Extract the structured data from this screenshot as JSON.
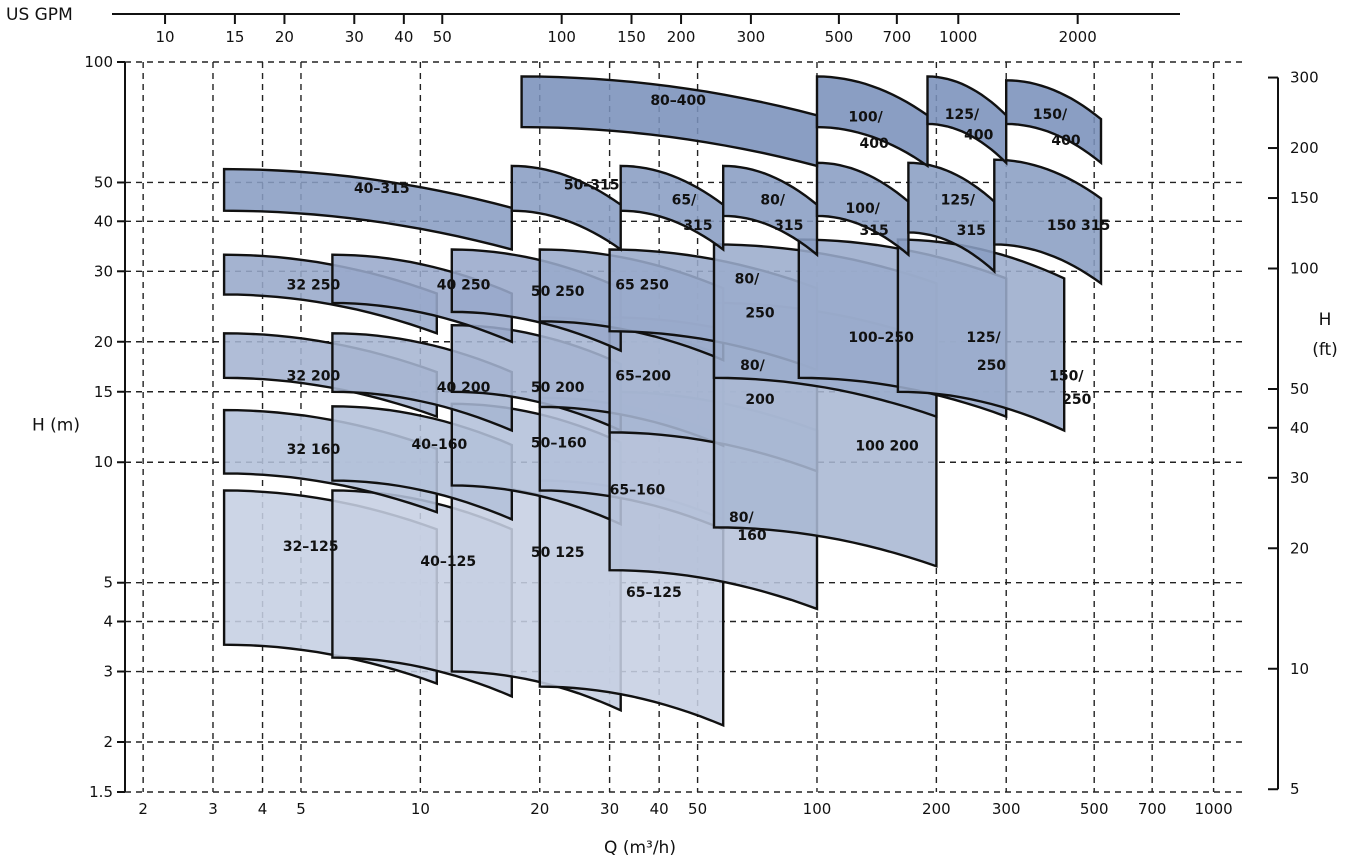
{
  "chart_data": {
    "type": "area",
    "title": "",
    "xlabel": "Q (m³/h)",
    "ylabel": "H (m)",
    "x_scale": "log",
    "y_scale": "log",
    "xlim": [
      1.8,
      1200
    ],
    "ylim": [
      1.5,
      100
    ],
    "grid": true,
    "x_ticks": [
      2,
      3,
      4,
      5,
      10,
      20,
      30,
      40,
      50,
      100,
      200,
      300,
      500,
      700,
      1000
    ],
    "x_tick_labels": [
      "2",
      "3",
      "4",
      "5",
      "10",
      "20",
      "30",
      "40",
      "50",
      "100",
      "200",
      "300",
      "500",
      "700",
      "1000"
    ],
    "y_ticks": [
      1.5,
      2,
      3,
      4,
      5,
      10,
      15,
      20,
      30,
      40,
      50,
      100
    ],
    "y_tick_labels": [
      "1.5",
      "2",
      "3",
      "4",
      "5",
      "10",
      "15",
      "20",
      "30",
      "40",
      "50",
      "100"
    ],
    "top_axis": {
      "label": "US GPM",
      "ticks": [
        10,
        15,
        20,
        30,
        40,
        50,
        100,
        150,
        200,
        300,
        500,
        700,
        1000,
        2000
      ],
      "tick_labels": [
        "10",
        "15",
        "20",
        "30",
        "40",
        "50",
        "100",
        "150",
        "200",
        "300",
        "500",
        "700",
        "1000",
        "2000"
      ]
    },
    "right_axis": {
      "label": "H",
      "unit": "(ft)",
      "ticks": [
        5,
        10,
        20,
        30,
        40,
        50,
        100,
        150,
        200,
        300
      ],
      "tick_labels": [
        "5",
        "10",
        "20",
        "30",
        "40",
        "50",
        "100",
        "150",
        "200",
        "300"
      ]
    },
    "series": [
      {
        "name": "32-125",
        "h_max": 8.5,
        "h_min": 2.8,
        "q_range": [
          3.2,
          11
        ]
      },
      {
        "name": "40-125",
        "h_max": 8.5,
        "h_min": 2.6,
        "q_range": [
          6,
          17
        ]
      },
      {
        "name": "50-125",
        "h_max": 8.8,
        "h_min": 2.4,
        "q_range": [
          12,
          32
        ]
      },
      {
        "name": "65-125",
        "h_max": 9.0,
        "h_min": 2.2,
        "q_range": [
          20,
          58
        ]
      },
      {
        "name": "32-160",
        "h_max": 13.5,
        "h_min": 7.5,
        "q_range": [
          3.2,
          11
        ]
      },
      {
        "name": "40-160",
        "h_max": 13.8,
        "h_min": 7.2,
        "q_range": [
          6,
          17
        ]
      },
      {
        "name": "50-160",
        "h_max": 14.0,
        "h_min": 7.0,
        "q_range": [
          12,
          32
        ]
      },
      {
        "name": "65-160",
        "h_max": 14.5,
        "h_min": 6.8,
        "q_range": [
          20,
          58
        ]
      },
      {
        "name": "80-160",
        "h_max": 15.0,
        "h_min": 4.3,
        "q_range": [
          30,
          100
        ]
      },
      {
        "name": "32-200",
        "h_max": 21,
        "h_min": 13,
        "q_range": [
          3.2,
          11
        ]
      },
      {
        "name": "40-200",
        "h_max": 21,
        "h_min": 12,
        "q_range": [
          6,
          17
        ]
      },
      {
        "name": "50-200",
        "h_max": 22,
        "h_min": 12,
        "q_range": [
          12,
          32
        ]
      },
      {
        "name": "65-200",
        "h_max": 23,
        "h_min": 11,
        "q_range": [
          20,
          58
        ]
      },
      {
        "name": "80-200",
        "h_max": 23,
        "h_min": 9.5,
        "q_range": [
          30,
          100
        ]
      },
      {
        "name": "100-200",
        "h_max": 25,
        "h_min": 5.5,
        "q_range": [
          55,
          200
        ]
      },
      {
        "name": "32-250",
        "h_max": 33,
        "h_min": 21,
        "q_range": [
          3.2,
          11
        ]
      },
      {
        "name": "40-250",
        "h_max": 33,
        "h_min": 20,
        "q_range": [
          6,
          17
        ]
      },
      {
        "name": "50-250",
        "h_max": 34,
        "h_min": 19,
        "q_range": [
          12,
          32
        ]
      },
      {
        "name": "65-250",
        "h_max": 34,
        "h_min": 18,
        "q_range": [
          20,
          58
        ]
      },
      {
        "name": "80-250",
        "h_max": 34,
        "h_min": 17,
        "q_range": [
          30,
          100
        ]
      },
      {
        "name": "100-250",
        "h_max": 35,
        "h_min": 13,
        "q_range": [
          55,
          200
        ]
      },
      {
        "name": "125-250",
        "h_max": 36,
        "h_min": 13,
        "q_range": [
          90,
          300
        ]
      },
      {
        "name": "150-250",
        "h_max": 36,
        "h_min": 12,
        "q_range": [
          160,
          420
        ]
      },
      {
        "name": "40-315",
        "h_max": 54,
        "h_min": 34,
        "q_range": [
          3.2,
          17
        ]
      },
      {
        "name": "50-315",
        "h_max": 55,
        "h_min": 34,
        "q_range": [
          17,
          32
        ]
      },
      {
        "name": "65-315",
        "h_max": 55,
        "h_min": 34,
        "q_range": [
          32,
          58
        ]
      },
      {
        "name": "80-315",
        "h_max": 55,
        "h_min": 33,
        "q_range": [
          58,
          100
        ]
      },
      {
        "name": "100-315",
        "h_max": 56,
        "h_min": 33,
        "q_range": [
          100,
          170
        ]
      },
      {
        "name": "125-315",
        "h_max": 56,
        "h_min": 30,
        "q_range": [
          170,
          280
        ]
      },
      {
        "name": "150-315",
        "h_max": 57,
        "h_min": 28,
        "q_range": [
          280,
          520
        ]
      },
      {
        "name": "80-400",
        "h_max": 92,
        "h_min": 55,
        "q_range": [
          18,
          100
        ]
      },
      {
        "name": "100-400",
        "h_max": 92,
        "h_min": 55,
        "q_range": [
          100,
          190
        ]
      },
      {
        "name": "125-400",
        "h_max": 92,
        "h_min": 56,
        "q_range": [
          190,
          300
        ]
      },
      {
        "name": "150-400",
        "h_max": 90,
        "h_min": 56,
        "q_range": [
          300,
          520
        ]
      }
    ],
    "region_labels": [
      {
        "text": "80–400",
        "q": 38,
        "h": 78
      },
      {
        "text": "100/",
        "q": 120,
        "h": 71
      },
      {
        "text": "400",
        "q": 128,
        "h": 61
      },
      {
        "text": "125/",
        "q": 210,
        "h": 72
      },
      {
        "text": "400",
        "q": 235,
        "h": 64
      },
      {
        "text": "150/",
        "q": 350,
        "h": 72
      },
      {
        "text": "400",
        "q": 390,
        "h": 62
      },
      {
        "text": "40–315",
        "q": 6.8,
        "h": 47
      },
      {
        "text": "50–315",
        "q": 23,
        "h": 48
      },
      {
        "text": "65/",
        "q": 43,
        "h": 44
      },
      {
        "text": "315",
        "q": 46,
        "h": 38
      },
      {
        "text": "80/",
        "q": 72,
        "h": 44
      },
      {
        "text": "315",
        "q": 78,
        "h": 38
      },
      {
        "text": "100/",
        "q": 118,
        "h": 42
      },
      {
        "text": "315",
        "q": 128,
        "h": 37
      },
      {
        "text": "125/",
        "q": 205,
        "h": 44
      },
      {
        "text": "315",
        "q": 225,
        "h": 37
      },
      {
        "text": "150 315",
        "q": 380,
        "h": 38
      },
      {
        "text": "32 250",
        "q": 4.6,
        "h": 27
      },
      {
        "text": "40 250",
        "q": 11,
        "h": 27
      },
      {
        "text": "50 250",
        "q": 19,
        "h": 26
      },
      {
        "text": "65 250",
        "q": 31,
        "h": 27
      },
      {
        "text": "80/",
        "q": 62,
        "h": 28
      },
      {
        "text": "250",
        "q": 66,
        "h": 23
      },
      {
        "text": "100–250",
        "q": 120,
        "h": 20
      },
      {
        "text": "125/",
        "q": 238,
        "h": 20
      },
      {
        "text": "250",
        "q": 253,
        "h": 17
      },
      {
        "text": "150/",
        "q": 385,
        "h": 16
      },
      {
        "text": "250",
        "q": 415,
        "h": 14
      },
      {
        "text": "32 200",
        "q": 4.6,
        "h": 16
      },
      {
        "text": "40 200",
        "q": 11,
        "h": 15
      },
      {
        "text": "50 200",
        "q": 19,
        "h": 15
      },
      {
        "text": "65–200",
        "q": 31,
        "h": 16
      },
      {
        "text": "80/",
        "q": 64,
        "h": 17
      },
      {
        "text": "200",
        "q": 66,
        "h": 14
      },
      {
        "text": "100 200",
        "q": 125,
        "h": 10.7
      },
      {
        "text": "32 160",
        "q": 4.6,
        "h": 10.5
      },
      {
        "text": "40–160",
        "q": 9.5,
        "h": 10.8
      },
      {
        "text": "50–160",
        "q": 19,
        "h": 10.9
      },
      {
        "text": "65–160",
        "q": 30,
        "h": 8.3
      },
      {
        "text": "80/",
        "q": 60,
        "h": 7.1
      },
      {
        "text": "160",
        "q": 63,
        "h": 6.4
      },
      {
        "text": "32–125",
        "q": 4.5,
        "h": 6.0
      },
      {
        "text": "40–125",
        "q": 10,
        "h": 5.5
      },
      {
        "text": "50 125",
        "q": 19,
        "h": 5.8
      },
      {
        "text": "65–125",
        "q": 33,
        "h": 4.6
      }
    ],
    "legend": "none"
  }
}
